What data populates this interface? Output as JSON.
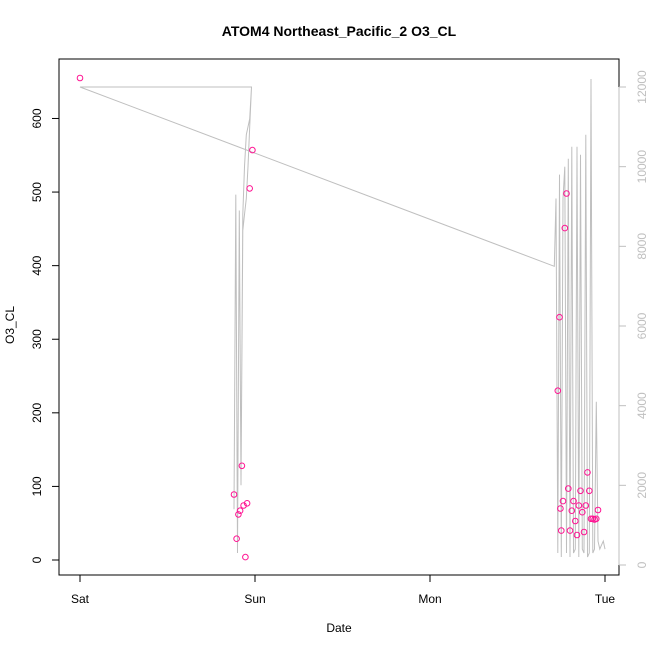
{
  "chart_data": {
    "type": "scatter",
    "title": "ATOM4 Northeast_Pacific_2 O3_CL",
    "xlabel": "Date",
    "ylabel": "O3_CL",
    "x_ticks": [
      {
        "value": 0,
        "label": "Sat"
      },
      {
        "value": 1,
        "label": "Sun"
      },
      {
        "value": 2,
        "label": "Mon"
      },
      {
        "value": 3,
        "label": "Tue"
      }
    ],
    "x_range": [
      0,
      3
    ],
    "y_ticks": [
      0,
      100,
      200,
      300,
      400,
      500,
      600
    ],
    "y_range": [
      0,
      655
    ],
    "y2_ticks": [
      0,
      2000,
      4000,
      6000,
      8000,
      10000,
      12000
    ],
    "y2_range": [
      0,
      12000
    ],
    "grid": false,
    "colors": {
      "points": "#ff1493",
      "line": "#bfbfbf",
      "axis": "#000000",
      "y2_axis": "#bfbfbf"
    },
    "series": [
      {
        "kind": "points",
        "axis": "left",
        "x": [
          0.0,
          0.88,
          0.895,
          0.905,
          0.915,
          0.925,
          0.935,
          0.945,
          0.955,
          0.97,
          0.985,
          2.73,
          2.74,
          2.745,
          2.75,
          2.76,
          2.77,
          2.78,
          2.79,
          2.8,
          2.81,
          2.82,
          2.83,
          2.84,
          2.85,
          2.86,
          2.87,
          2.88,
          2.89,
          2.9,
          2.91,
          2.92,
          2.93,
          2.94,
          2.95,
          2.96
        ],
        "y": [
          655,
          89,
          29,
          62,
          67,
          128,
          74,
          4,
          77,
          505,
          557,
          230,
          330,
          70,
          40,
          80,
          451,
          498,
          97,
          40,
          67,
          80,
          53,
          34,
          74,
          94,
          65,
          38,
          74,
          119,
          94,
          56,
          56,
          55,
          56,
          68
        ]
      },
      {
        "kind": "line",
        "axis": "right",
        "x": [
          0.0,
          0.98,
          0.97,
          0.96,
          0.95,
          0.94,
          0.93,
          0.92,
          0.91,
          0.9,
          0.89,
          0.88,
          0.89,
          0.9,
          0.91,
          0.92,
          0.93,
          0.94,
          0.95,
          0.96,
          0.97,
          0.98,
          0.0,
          2.71,
          2.72,
          2.73,
          2.74,
          2.75,
          2.76,
          2.77,
          2.78,
          2.79,
          2.8,
          2.81,
          2.82,
          2.83,
          2.84,
          2.85,
          2.86,
          2.87,
          2.88,
          2.89,
          2.9,
          2.91,
          2.92,
          2.93,
          2.94,
          2.95,
          2.96,
          2.97,
          2.98,
          2.99,
          3.0
        ],
        "y": [
          12000,
          12000,
          11000,
          10000,
          9200,
          8800,
          8400,
          2000,
          8800,
          400,
          9300,
          1400,
          9200,
          300,
          8900,
          2000,
          8800,
          10000,
          10800,
          11000,
          11200,
          12000,
          12000,
          7500,
          9200,
          300,
          9800,
          200,
          9200,
          10000,
          300,
          10200,
          200,
          10500,
          300,
          400,
          10500,
          200,
          10300,
          400,
          300,
          10800,
          200,
          300,
          12200,
          300,
          400,
          4100,
          600,
          400,
          500,
          600,
          400
        ]
      }
    ]
  }
}
